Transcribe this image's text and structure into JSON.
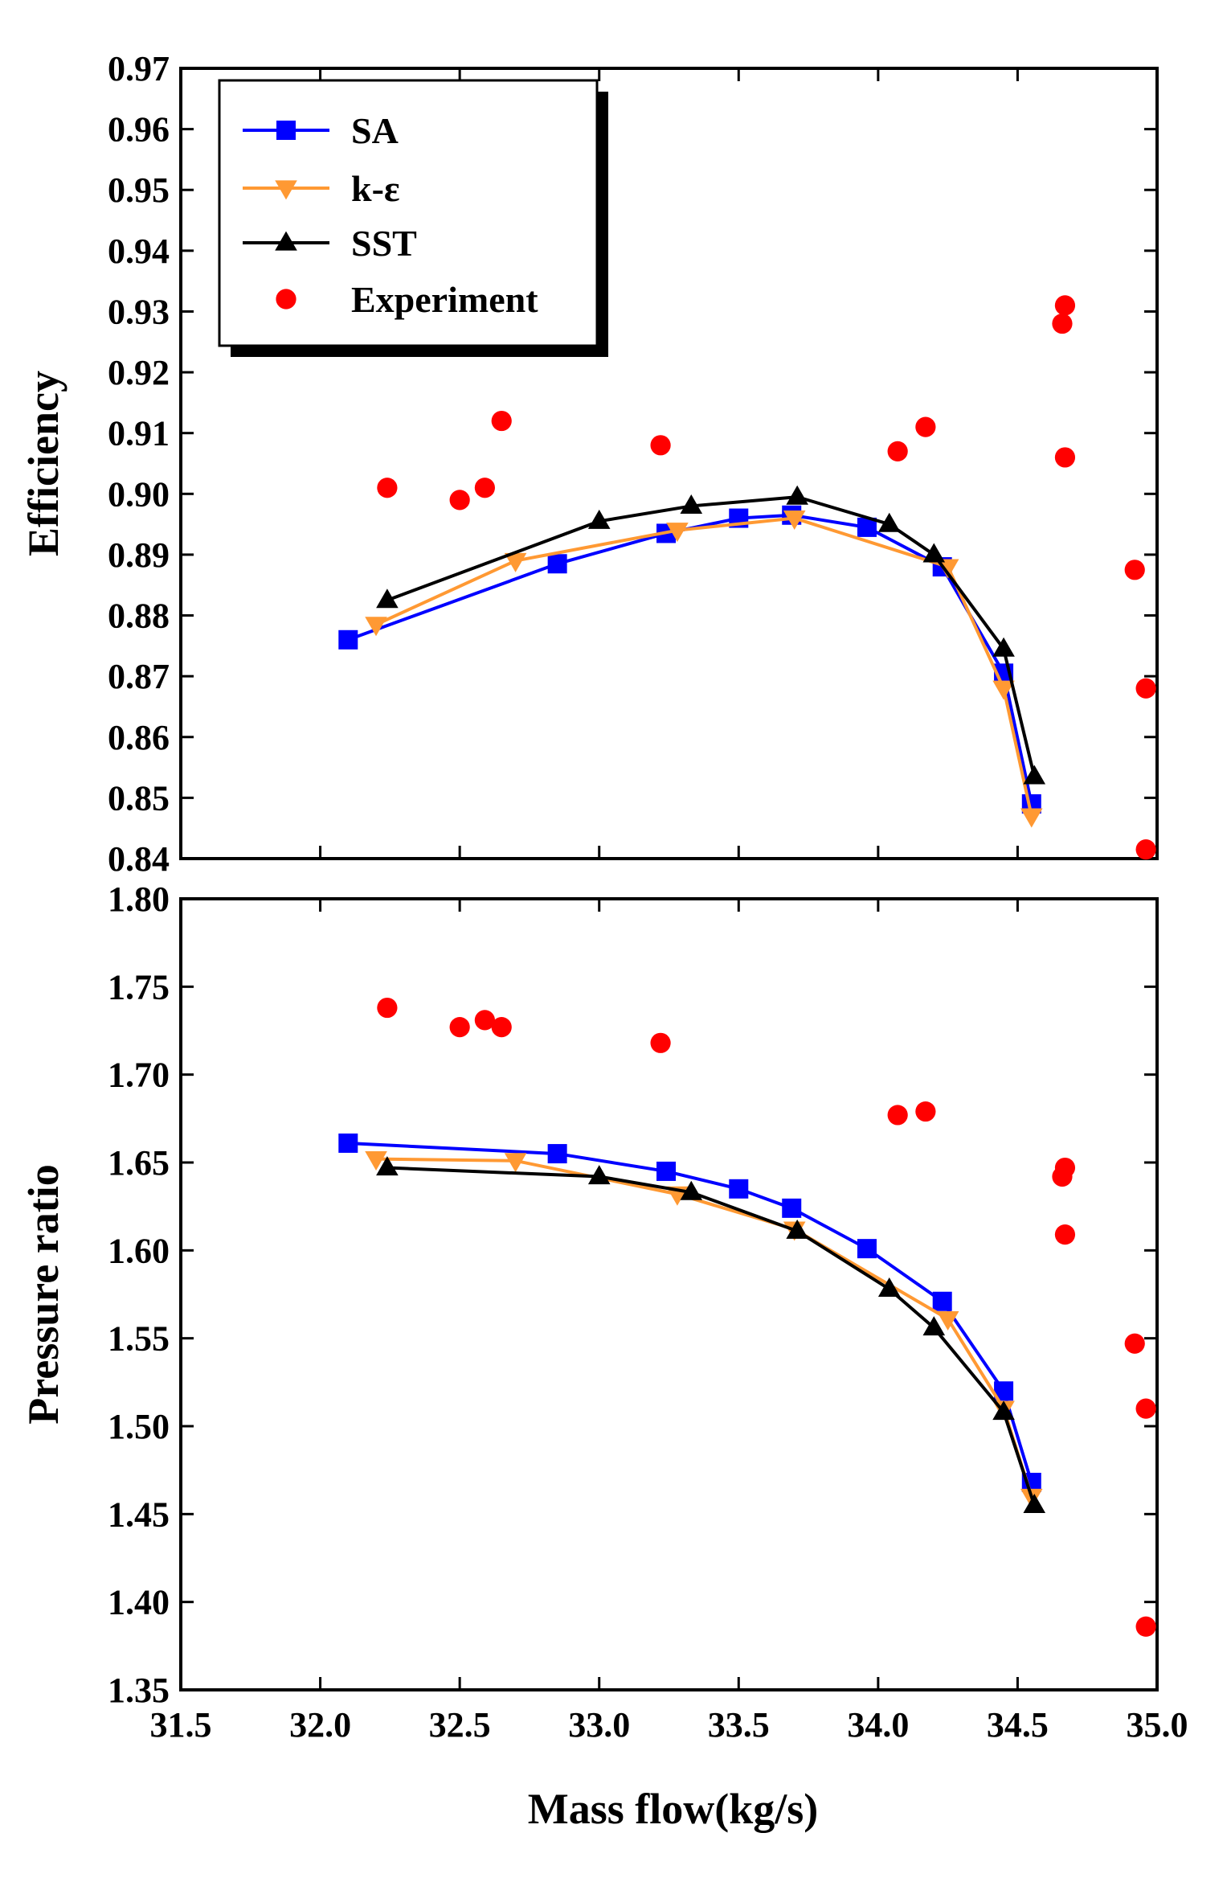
{
  "chart_data": {
    "type": "line+scatter",
    "shared_x": {
      "label": "Mass flow(kg/s)",
      "range": [
        31.5,
        35.0
      ],
      "ticks": [
        31.5,
        32.0,
        32.5,
        33.0,
        33.5,
        34.0,
        34.5,
        35.0
      ],
      "tick_labels": [
        "31.5",
        "32.0",
        "32.5",
        "33.0",
        "33.5",
        "34.0",
        "34.5",
        "35.0"
      ]
    },
    "legend": {
      "location": "top-left",
      "entries": [
        {
          "key": "SA",
          "label": "SA",
          "color": "#0000ff",
          "marker": "square",
          "line": true
        },
        {
          "key": "ke",
          "label": "k-ε",
          "color": "#ff9933",
          "marker": "triangle-down",
          "line": true
        },
        {
          "key": "SST",
          "label": "SST",
          "color": "#000000",
          "marker": "triangle-up",
          "line": true
        },
        {
          "key": "Exp",
          "label": "Experiment",
          "color": "#ff0000",
          "marker": "circle",
          "line": false
        }
      ]
    },
    "panels": [
      {
        "name": "efficiency",
        "ylabel": "Efficiency",
        "ylim": [
          0.84,
          0.97
        ],
        "yticks": [
          0.84,
          0.85,
          0.86,
          0.87,
          0.88,
          0.89,
          0.9,
          0.91,
          0.92,
          0.93,
          0.94,
          0.95,
          0.96,
          0.97
        ],
        "ytick_labels": [
          "0.84",
          "0.85",
          "0.86",
          "0.87",
          "0.88",
          "0.89",
          "0.90",
          "0.91",
          "0.92",
          "0.93",
          "0.94",
          "0.95",
          "0.96",
          "0.97"
        ],
        "series": [
          {
            "key": "SA",
            "x": [
              32.1,
              32.85,
              33.24,
              33.5,
              33.69,
              33.96,
              34.23,
              34.45,
              34.55
            ],
            "y": [
              0.876,
              0.8885,
              0.8935,
              0.896,
              0.8965,
              0.8945,
              0.888,
              0.8705,
              0.849
            ]
          },
          {
            "key": "ke",
            "x": [
              32.2,
              32.7,
              33.28,
              33.7,
              34.25,
              34.45,
              34.55
            ],
            "y": [
              0.8785,
              0.889,
              0.894,
              0.896,
              0.888,
              0.868,
              0.847
            ]
          },
          {
            "key": "SST",
            "x": [
              32.24,
              33.0,
              33.33,
              33.71,
              34.04,
              34.2,
              34.45,
              34.56
            ],
            "y": [
              0.8825,
              0.8955,
              0.898,
              0.8995,
              0.895,
              0.89,
              0.8745,
              0.8535
            ]
          },
          {
            "key": "Exp",
            "x": [
              32.24,
              32.5,
              32.59,
              32.65,
              33.22,
              34.07,
              34.17,
              34.66,
              34.67,
              34.67,
              34.92,
              34.96,
              34.96
            ],
            "y": [
              0.901,
              0.899,
              0.901,
              0.912,
              0.908,
              0.907,
              0.911,
              0.928,
              0.931,
              0.906,
              0.8875,
              0.868,
              0.8415
            ]
          }
        ]
      },
      {
        "name": "pressure-ratio",
        "ylabel": "Pressure ratio",
        "ylim": [
          1.35,
          1.8
        ],
        "yticks": [
          1.35,
          1.4,
          1.45,
          1.5,
          1.55,
          1.6,
          1.65,
          1.7,
          1.75,
          1.8
        ],
        "ytick_labels": [
          "1.35",
          "1.40",
          "1.45",
          "1.50",
          "1.55",
          "1.60",
          "1.65",
          "1.70",
          "1.75",
          "1.80"
        ],
        "series": [
          {
            "key": "SA",
            "x": [
              32.1,
              32.85,
              33.24,
              33.5,
              33.69,
              33.96,
              34.23,
              34.45,
              34.55
            ],
            "y": [
              1.661,
              1.655,
              1.645,
              1.635,
              1.624,
              1.601,
              1.571,
              1.52,
              1.468
            ]
          },
          {
            "key": "ke",
            "x": [
              32.2,
              32.7,
              33.28,
              33.7,
              34.25,
              34.45,
              34.55
            ],
            "y": [
              1.652,
              1.651,
              1.632,
              1.612,
              1.561,
              1.51,
              1.46
            ]
          },
          {
            "key": "SST",
            "x": [
              32.24,
              33.0,
              33.33,
              33.71,
              34.04,
              34.2,
              34.45,
              34.56
            ],
            "y": [
              1.647,
              1.642,
              1.633,
              1.611,
              1.578,
              1.556,
              1.508,
              1.455
            ]
          },
          {
            "key": "Exp",
            "x": [
              32.24,
              32.5,
              32.59,
              32.65,
              33.22,
              34.07,
              34.17,
              34.66,
              34.67,
              34.67,
              34.92,
              34.96,
              34.96
            ],
            "y": [
              1.738,
              1.727,
              1.731,
              1.727,
              1.718,
              1.677,
              1.679,
              1.642,
              1.647,
              1.609,
              1.547,
              1.51,
              1.386
            ]
          }
        ]
      }
    ]
  }
}
